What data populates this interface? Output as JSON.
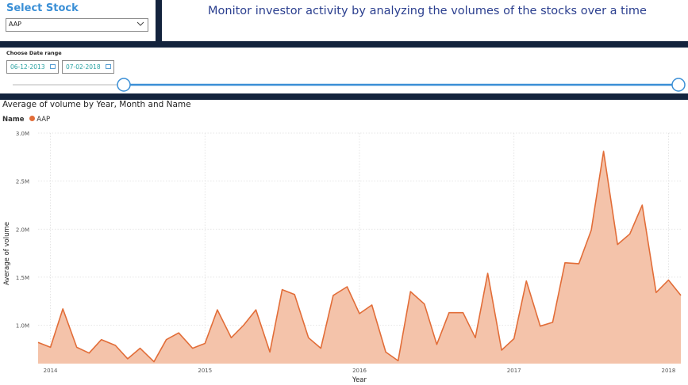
{
  "slicer": {
    "title": "Select Stock",
    "selected": "AAP"
  },
  "headline": "Monitor investor activity by analyzing the volumes of the stocks over a time",
  "date_range": {
    "label": "Choose Date range",
    "start": "06-12-2013",
    "end": "07-02-2018",
    "slider_start_fraction": 0,
    "slider_end_fraction": 1
  },
  "colors": {
    "band": "#13233d",
    "accent": "#3a8fd6",
    "series": "#e26d38",
    "series_fill": "#f4c3aa"
  },
  "chart_data": {
    "type": "area",
    "title": "Average of volume by Year, Month and Name",
    "legend_title": "Name",
    "xlabel": "Year",
    "ylabel": "Average of volume",
    "y_ticks": [
      "1.0M",
      "1.5M",
      "2.0M",
      "2.5M",
      "3.0M"
    ],
    "y_tick_values": [
      1000000,
      1500000,
      2000000,
      2500000,
      3000000
    ],
    "x_ticks": [
      "2014",
      "2015",
      "2016",
      "2017",
      "2018"
    ],
    "x_tick_values": [
      2014.0,
      2015.0,
      2016.0,
      2017.0,
      2018.0
    ],
    "xlim": [
      2013.92,
      2018.08
    ],
    "ylim": [
      600000,
      3000000
    ],
    "grid": true,
    "legend_position": "top-left",
    "series": [
      {
        "name": "AAP",
        "x": [
          2013.92,
          2014.0,
          2014.08,
          2014.17,
          2014.25,
          2014.33,
          2014.42,
          2014.5,
          2014.58,
          2014.67,
          2014.75,
          2014.83,
          2014.92,
          2015.0,
          2015.08,
          2015.17,
          2015.25,
          2015.33,
          2015.42,
          2015.5,
          2015.58,
          2015.67,
          2015.75,
          2015.83,
          2015.92,
          2016.0,
          2016.08,
          2016.17,
          2016.25,
          2016.33,
          2016.42,
          2016.5,
          2016.58,
          2016.67,
          2016.75,
          2016.83,
          2016.92,
          2017.0,
          2017.08,
          2017.17,
          2017.25,
          2017.33,
          2017.42,
          2017.5,
          2017.58,
          2017.67,
          2017.75,
          2017.83,
          2017.92,
          2018.0,
          2018.08
        ],
        "values": [
          820000,
          770000,
          1170000,
          770000,
          710000,
          850000,
          790000,
          650000,
          760000,
          620000,
          850000,
          920000,
          760000,
          810000,
          1160000,
          870000,
          1000000,
          1160000,
          720000,
          1370000,
          1320000,
          870000,
          760000,
          1310000,
          1400000,
          1120000,
          1210000,
          720000,
          630000,
          1350000,
          1220000,
          800000,
          1130000,
          1130000,
          870000,
          1540000,
          740000,
          860000,
          1460000,
          990000,
          1030000,
          1650000,
          1640000,
          1990000,
          2810000,
          1840000,
          1950000,
          2250000,
          1340000,
          1470000,
          1310000
        ]
      }
    ]
  }
}
